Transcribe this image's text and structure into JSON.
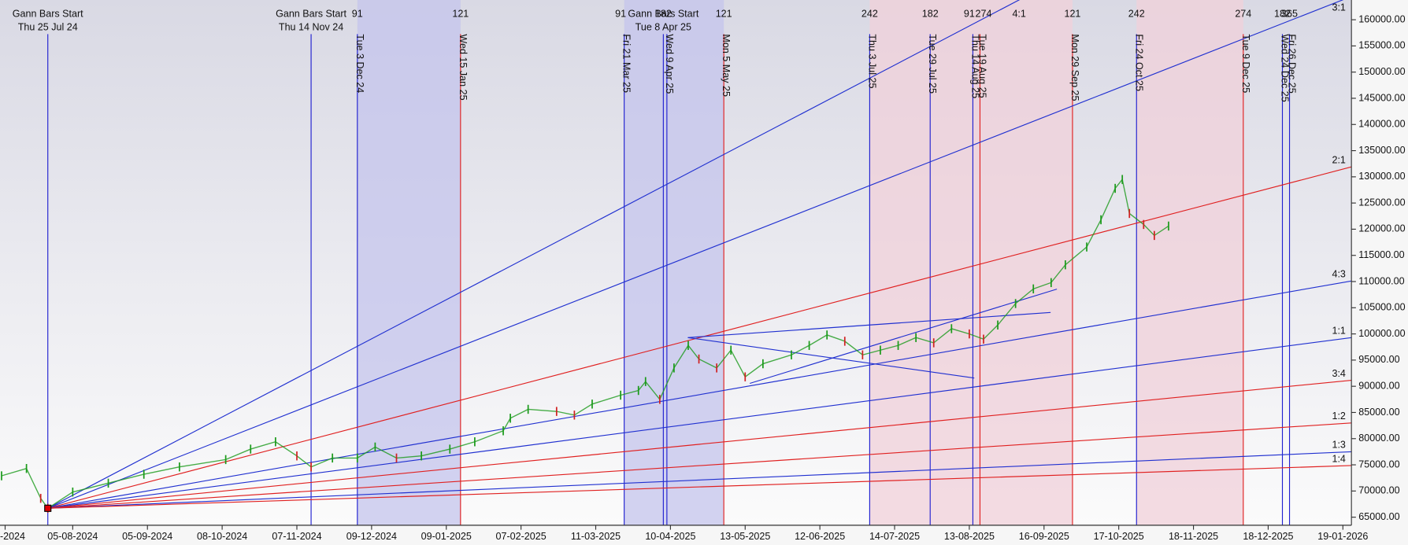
{
  "chart_data": {
    "type": "ohlc",
    "xlim": [
      -20.44,
      359.4
    ],
    "ylim": [
      63460,
      163770
    ],
    "xticks": [
      {
        "value": -19,
        "label": "-2024"
      },
      {
        "value": 0,
        "label": "05-08-2024"
      },
      {
        "value": 21,
        "label": "05-09-2024"
      },
      {
        "value": 42,
        "label": "08-10-2024"
      },
      {
        "value": 63,
        "label": "07-11-2024"
      },
      {
        "value": 84,
        "label": "09-12-2024"
      },
      {
        "value": 105,
        "label": "09-01-2025"
      },
      {
        "value": 126,
        "label": "07-02-2025"
      },
      {
        "value": 147,
        "label": "11-03-2025"
      },
      {
        "value": 168,
        "label": "10-04-2025"
      },
      {
        "value": 189,
        "label": "13-05-2025"
      },
      {
        "value": 210,
        "label": "12-06-2025"
      },
      {
        "value": 231,
        "label": "14-07-2025"
      },
      {
        "value": 252,
        "label": "13-08-2025"
      },
      {
        "value": 273,
        "label": "16-09-2025"
      },
      {
        "value": 294,
        "label": "17-10-2025"
      },
      {
        "value": 315,
        "label": "18-11-2025"
      },
      {
        "value": 336,
        "label": "18-12-2025"
      },
      {
        "value": 357,
        "label": "19-01-2026"
      }
    ],
    "yticks": [
      {
        "value": 65000,
        "label": "65000.00"
      },
      {
        "value": 70000,
        "label": "70000.00"
      },
      {
        "value": 75000,
        "label": "75000.00"
      },
      {
        "value": 80000,
        "label": "80000.00"
      },
      {
        "value": 85000,
        "label": "85000.00"
      },
      {
        "value": 90000,
        "label": "90000.00"
      },
      {
        "value": 95000,
        "label": "95000.00"
      },
      {
        "value": 100000,
        "label": "100000.00"
      },
      {
        "value": 105000,
        "label": "105000.00"
      },
      {
        "value": 110000,
        "label": "110000.00"
      },
      {
        "value": 115000,
        "label": "115000.00"
      },
      {
        "value": 120000,
        "label": "120000.00"
      },
      {
        "value": 125000,
        "label": "125000.00"
      },
      {
        "value": 130000,
        "label": "130000.00"
      },
      {
        "value": 135000,
        "label": "135000.00"
      },
      {
        "value": 140000,
        "label": "140000.00"
      },
      {
        "value": 145000,
        "label": "145000.00"
      },
      {
        "value": 150000,
        "label": "150000.00"
      },
      {
        "value": 155000,
        "label": "155000.00"
      },
      {
        "value": 160000,
        "label": "160000.00"
      }
    ],
    "up_color": "#1a9a1a",
    "down_color": "#d02020",
    "x": [
      -20,
      -13,
      -9,
      -7,
      0,
      10,
      20,
      30,
      43,
      50,
      57,
      63,
      67,
      73,
      80,
      85,
      91,
      98,
      106,
      113,
      121,
      123,
      128,
      136,
      141,
      146,
      154,
      159,
      161,
      165,
      169,
      173,
      176,
      181,
      185,
      189,
      194,
      202,
      207,
      212,
      217,
      222,
      227,
      232,
      237,
      242,
      247,
      252,
      256,
      260,
      265,
      270,
      275,
      279,
      285,
      289,
      293,
      295,
      297,
      301,
      304,
      308
    ],
    "values": [
      72900,
      74300,
      68600,
      66700,
      69800,
      71500,
      73200,
      74600,
      76000,
      78000,
      79400,
      76700,
      74600,
      76300,
      76300,
      78400,
      76300,
      76700,
      78000,
      79400,
      81500,
      83900,
      85600,
      85200,
      84500,
      86600,
      88300,
      89200,
      90900,
      87500,
      93500,
      97800,
      95200,
      93500,
      96900,
      91800,
      94300,
      96000,
      97800,
      99800,
      98600,
      96000,
      96900,
      97800,
      99300,
      98300,
      101000,
      100000,
      99000,
      101700,
      105800,
      108600,
      109800,
      113200,
      116600,
      121800,
      127800,
      129500,
      123000,
      120900,
      118800,
      120600
    ],
    "zones": [
      {
        "x": [
          80,
          109
        ],
        "color": "#c4c4ec"
      },
      {
        "x": [
          155,
          183
        ],
        "color": "#c4c4ec"
      },
      {
        "x": [
          224,
          281
        ],
        "color": "#f0d0da"
      },
      {
        "x": [
          299,
          329
        ],
        "color": "#f0d0da"
      }
    ],
    "events": [
      {
        "x": -7,
        "color": "#2020d0",
        "date": "Thu 25 Jul 24",
        "heading": "Gann Bars Start"
      },
      {
        "x": 67,
        "color": "#2020d0",
        "date": "Thu 14 Nov 24",
        "heading": "Gann Bars Start"
      },
      {
        "x": 80,
        "color": "#2020d0",
        "date": "Tue 3 Dec 24"
      },
      {
        "x": 109,
        "color": "#e02020",
        "date": "Wed 15 Jan 25"
      },
      {
        "x": 155,
        "color": "#2020d0",
        "date": "Fri 21 Mar 25"
      },
      {
        "x": 166,
        "color": "#2020d0",
        "date": "Tue 8 Apr 25",
        "heading": "Gann Bars Start"
      },
      {
        "x": 167,
        "color": "#2020d0",
        "date": "Wed 9 Apr 25"
      },
      {
        "x": 183,
        "color": "#e02020",
        "date": "Mon 5 May 25"
      },
      {
        "x": 224,
        "color": "#2020d0",
        "date": "Thu 3 Jul 25"
      },
      {
        "x": 241,
        "color": "#2020d0",
        "date": "Tue 29 Jul 25"
      },
      {
        "x": 253,
        "color": "#2020d0",
        "date": "Thu 14 Aug 25"
      },
      {
        "x": 255,
        "color": "#e02020",
        "date": "Tue 19 Aug 25"
      },
      {
        "x": 281,
        "color": "#e02020",
        "date": "Mon 29 Sep 25"
      },
      {
        "x": 299,
        "color": "#2020d0",
        "date": "Fri 24 Oct 25"
      },
      {
        "x": 329,
        "color": "#e02020",
        "date": "Tue 9 Dec 25"
      },
      {
        "x": 340,
        "color": "#2020d0",
        "date": "Wed 24 Dec 25"
      },
      {
        "x": 342,
        "color": "#2020d0",
        "date": "Fri 26 Dec 25"
      }
    ],
    "counts": [
      {
        "text": 91,
        "x": 80
      },
      {
        "text": 121,
        "x": 109
      },
      {
        "text": 91,
        "x": 154
      },
      {
        "text": 182,
        "x": 166
      },
      {
        "text": 121,
        "x": 183
      },
      {
        "text": 242,
        "x": 224
      },
      {
        "text": 182,
        "x": 241
      },
      {
        "text": 91,
        "x": 252
      },
      {
        "text": 274,
        "x": 256
      },
      {
        "text": "4:1",
        "x": 266
      },
      {
        "text": 121,
        "x": 281
      },
      {
        "text": 242,
        "x": 299
      },
      {
        "text": 274,
        "x": 329
      },
      {
        "text": 182,
        "x": 340
      },
      {
        "text": 365,
        "x": 342
      }
    ],
    "fans": {
      "origin": {
        "x": -7,
        "y": 66700
      },
      "lines": [
        {
          "color": "#2030d0",
          "end": 197000
        },
        {
          "name": "3:1",
          "color": "#2030d0",
          "end": 164450
        },
        {
          "name": "2:1",
          "color": "#e02020",
          "end": 131900
        },
        {
          "name": "4:3",
          "color": "#2030d0",
          "end": 110100
        },
        {
          "name": "1:1",
          "color": "#2030d0",
          "end": 99300
        },
        {
          "name": "3:4",
          "color": "#e02020",
          "end": 91150
        },
        {
          "name": "1:2",
          "color": "#e02020",
          "end": 83000
        },
        {
          "name": "1:3",
          "color": "#2030d0",
          "end": 77500
        },
        {
          "name": "1:4",
          "color": "#e02020",
          "end": 74860
        }
      ]
    }
  }
}
